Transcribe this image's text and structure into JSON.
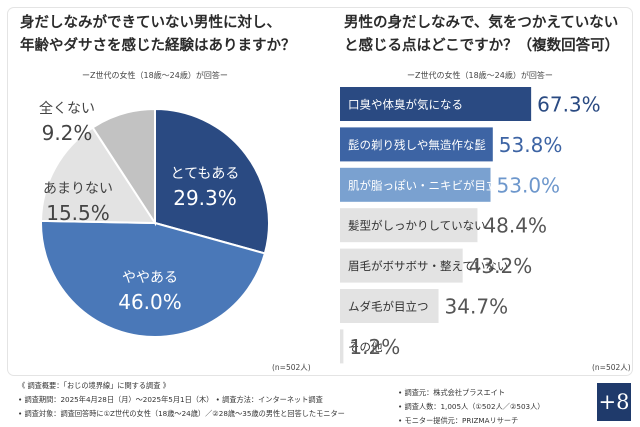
{
  "left": {
    "title_line1": "身だしなみができていない男性に対し、",
    "title_line2": "年齢やダサさを感じた経験はありますか？",
    "subtitle": "ーZ世代の女性（18歳〜24歳）が回答ー",
    "n": "(n=502人)"
  },
  "right": {
    "title_line1": "男性の身だしなみで、気をつかえていない",
    "title_line2": "と感じる点はどこですか？（複数回答可）",
    "subtitle": "ーZ世代の女性（18歳〜24歳）が回答ー",
    "n": "(n=502人)"
  },
  "chart_data": [
    {
      "type": "pie",
      "title": "身だしなみができていない男性に対し、年齢やダサさを感じた経験はありますか？",
      "categories": [
        "とてもある",
        "ややある",
        "あまりない",
        "全くない"
      ],
      "values": [
        29.3,
        46.0,
        15.5,
        9.2
      ],
      "value_labels": [
        "29.3%",
        "46.0%",
        "15.5%",
        "9.2%"
      ],
      "colors": [
        "#2a4a82",
        "#4a78b8",
        "#e3e3e3",
        "#c2c2c2"
      ]
    },
    {
      "type": "bar",
      "title": "男性の身だしなみで、気をつかえていないと感じる点はどこですか？（複数回答可）",
      "categories": [
        "口臭や体臭が気になる",
        "髭の剃り残しや無造作な髭",
        "肌が脂っぽい・ニキビが目立つ",
        "髪型がしっかりしていない",
        "眉毛がボサボサ・整えていない",
        "ムダ毛が目立つ",
        "その他"
      ],
      "values": [
        67.3,
        53.8,
        53.0,
        48.4,
        43.2,
        34.7,
        1.2
      ],
      "value_labels": [
        "67.3%",
        "53.8%",
        "53.0%",
        "48.4%",
        "43.2%",
        "34.7%",
        "1.2%"
      ],
      "colors": [
        "#2a4a82",
        "#3d64a4",
        "#7aa1d0",
        "#e3e3e3",
        "#e3e3e3",
        "#e3e3e3",
        "#e3e3e3"
      ],
      "xlim": [
        0,
        100
      ]
    }
  ],
  "footer": {
    "line1": "《 調査概要：「おじの境界線」に関する調査 》",
    "line2": "• 調査期間：2025年4月28日（月）〜2025年5月1日（木） • 調査方法：インターネット調査",
    "line3": "• 調査対象：調査回答時に①Z世代の女性（18歳〜24歳）／②28歳〜35歳の男性と回答したモニター",
    "r1": "• 調査元：株式会社プラスエイト",
    "r2": "• 調査人数：1,005人（①502人／②503人）",
    "r3": "• モニター提供元：PRIZMAリサーチ"
  },
  "logo": "+8"
}
